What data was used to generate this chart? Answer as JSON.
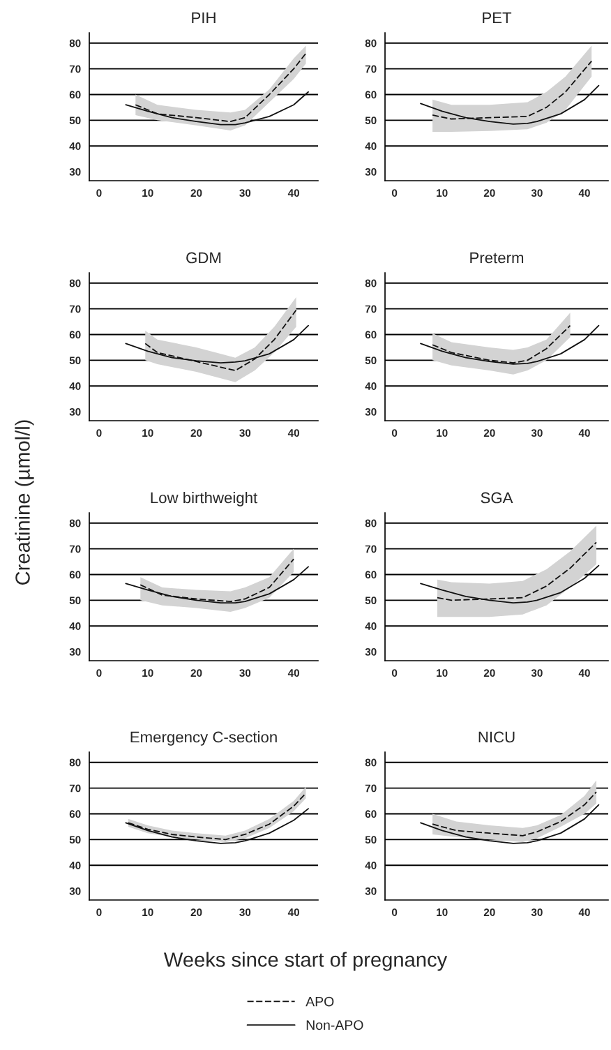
{
  "chart_data": [
    {
      "type": "line",
      "title": "PIH",
      "legend": "bottom",
      "xlim": [
        -2,
        45
      ],
      "ylim": [
        26.5,
        84
      ],
      "xticks": [
        0,
        10,
        20,
        30,
        40
      ],
      "yticks": [
        30,
        40,
        50,
        60,
        70,
        80
      ],
      "ref_lines": [
        {
          "axis": "y",
          "value": 40
        },
        {
          "axis": "y",
          "value": 50
        },
        {
          "axis": "y",
          "value": 60
        },
        {
          "axis": "y",
          "value": 70
        },
        {
          "axis": "y",
          "value": 80
        }
      ],
      "series": [
        {
          "name": "APO",
          "color": "#111111",
          "line_style": "dashed",
          "x": [
            7.5,
            12,
            20,
            27,
            30,
            35,
            40,
            42.5
          ],
          "values": [
            56,
            52.5,
            51,
            49.5,
            51,
            60,
            70,
            76
          ],
          "lower": [
            52,
            50,
            48,
            46,
            48,
            57,
            66,
            72
          ],
          "upper": [
            60,
            56,
            54,
            53,
            54,
            62,
            74,
            79
          ]
        },
        {
          "name": "Non-APO",
          "color": "#111111",
          "line_style": "solid",
          "x": [
            5.5,
            10,
            15,
            20,
            25,
            28,
            30,
            35,
            40,
            43
          ],
          "values": [
            56,
            53.5,
            51,
            49.5,
            48.3,
            48.3,
            49,
            51.5,
            56,
            61
          ]
        }
      ]
    },
    {
      "type": "line",
      "title": "PET",
      "xlim": [
        -2,
        45
      ],
      "ylim": [
        26.5,
        84
      ],
      "xticks": [
        0,
        10,
        20,
        30,
        40
      ],
      "yticks": [
        30,
        40,
        50,
        60,
        70,
        80
      ],
      "ref_lines": [
        {
          "axis": "y",
          "value": 40
        },
        {
          "axis": "y",
          "value": 50
        },
        {
          "axis": "y",
          "value": 60
        },
        {
          "axis": "y",
          "value": 70
        },
        {
          "axis": "y",
          "value": 80
        }
      ],
      "series": [
        {
          "color": "#111111",
          "line_style": "dashed",
          "x": [
            8,
            12,
            20,
            28,
            32,
            36,
            41.5
          ],
          "values": [
            52,
            50.5,
            51,
            51.5,
            55,
            61,
            73
          ],
          "lower": [
            45.5,
            45.5,
            45.8,
            46.5,
            49,
            54,
            67
          ],
          "upper": [
            58,
            56,
            56,
            57,
            61,
            67,
            79
          ]
        },
        {
          "color": "#111111",
          "line_style": "solid",
          "x": [
            5.5,
            10,
            15,
            20,
            25,
            28,
            30,
            35,
            40,
            43
          ],
          "values": [
            56.5,
            53.5,
            51,
            49.5,
            48.5,
            48.8,
            49.5,
            52.5,
            58,
            63.5
          ]
        }
      ]
    },
    {
      "type": "line",
      "title": "GDM",
      "xlim": [
        -2,
        45
      ],
      "ylim": [
        26.5,
        84
      ],
      "xticks": [
        0,
        10,
        20,
        30,
        40
      ],
      "yticks": [
        30,
        40,
        50,
        60,
        70,
        80
      ],
      "ref_lines": [
        {
          "axis": "y",
          "value": 40
        },
        {
          "axis": "y",
          "value": 50
        },
        {
          "axis": "y",
          "value": 60
        },
        {
          "axis": "y",
          "value": 70
        },
        {
          "axis": "y",
          "value": 80
        }
      ],
      "series": [
        {
          "color": "#111111",
          "line_style": "dashed",
          "x": [
            9.5,
            12,
            20,
            28,
            32,
            36,
            40.5
          ],
          "values": [
            56.5,
            53,
            49.5,
            46,
            50.5,
            58,
            69.5
          ],
          "lower": [
            50,
            48.5,
            45.5,
            41.5,
            46,
            53,
            63
          ],
          "upper": [
            61.5,
            58,
            55,
            51,
            55,
            63,
            74.5
          ]
        },
        {
          "color": "#111111",
          "line_style": "solid",
          "x": [
            5.5,
            10,
            15,
            20,
            25,
            28,
            30,
            35,
            40,
            43
          ],
          "values": [
            56.5,
            53.5,
            51,
            49.8,
            49,
            49.3,
            49.8,
            52.5,
            58,
            63.5
          ]
        }
      ]
    },
    {
      "type": "line",
      "title": "Preterm",
      "xlim": [
        -2,
        45
      ],
      "ylim": [
        26.5,
        84
      ],
      "xticks": [
        0,
        10,
        20,
        30,
        40
      ],
      "yticks": [
        30,
        40,
        50,
        60,
        70,
        80
      ],
      "ref_lines": [
        {
          "axis": "y",
          "value": 40
        },
        {
          "axis": "y",
          "value": 50
        },
        {
          "axis": "y",
          "value": 60
        },
        {
          "axis": "y",
          "value": 70
        },
        {
          "axis": "y",
          "value": 80
        }
      ],
      "series": [
        {
          "color": "#111111",
          "line_style": "dashed",
          "x": [
            8,
            12,
            20,
            25,
            28,
            32,
            37
          ],
          "values": [
            56,
            53,
            50,
            49,
            50,
            54.5,
            63.5
          ],
          "lower": [
            50,
            48,
            46,
            44.5,
            46,
            50,
            59
          ],
          "upper": [
            60.5,
            57,
            55,
            54,
            55,
            58,
            68.5
          ]
        },
        {
          "color": "#111111",
          "line_style": "solid",
          "x": [
            5.5,
            10,
            15,
            20,
            25,
            28,
            30,
            35,
            40,
            43
          ],
          "values": [
            56.5,
            53.5,
            51,
            49.5,
            48.5,
            48.8,
            49.5,
            52.5,
            58,
            63.5
          ]
        }
      ]
    },
    {
      "type": "line",
      "title": "Low birthweight",
      "ylabel": "Creatinine (µmol/l)",
      "xlim": [
        -2,
        45
      ],
      "ylim": [
        26.5,
        84
      ],
      "xticks": [
        0,
        10,
        20,
        30,
        40
      ],
      "yticks": [
        30,
        40,
        50,
        60,
        70,
        80
      ],
      "ref_lines": [
        {
          "axis": "y",
          "value": 40
        },
        {
          "axis": "y",
          "value": 50
        },
        {
          "axis": "y",
          "value": 60
        },
        {
          "axis": "y",
          "value": 70
        },
        {
          "axis": "y",
          "value": 80
        }
      ],
      "series": [
        {
          "color": "#111111",
          "line_style": "dashed",
          "x": [
            8.5,
            13,
            20,
            27,
            30,
            35,
            40
          ],
          "values": [
            56,
            52,
            50.5,
            49.5,
            50.5,
            55,
            66
          ],
          "lower": [
            50,
            48,
            47,
            45.5,
            47,
            51,
            61
          ],
          "upper": [
            59,
            55,
            54,
            53.5,
            55,
            59,
            70
          ]
        },
        {
          "color": "#111111",
          "line_style": "solid",
          "x": [
            5.5,
            10,
            15,
            20,
            25,
            28,
            30,
            35,
            40,
            43
          ],
          "values": [
            56.5,
            54,
            51.5,
            50,
            49,
            49,
            49.5,
            52.5,
            58,
            63
          ]
        }
      ]
    },
    {
      "type": "line",
      "title": "SGA",
      "xlim": [
        -2,
        45
      ],
      "ylim": [
        26.5,
        84
      ],
      "xticks": [
        0,
        10,
        20,
        30,
        40
      ],
      "yticks": [
        30,
        40,
        50,
        60,
        70,
        80
      ],
      "ref_lines": [
        {
          "axis": "y",
          "value": 40
        },
        {
          "axis": "y",
          "value": 50
        },
        {
          "axis": "y",
          "value": 60
        },
        {
          "axis": "y",
          "value": 70
        },
        {
          "axis": "y",
          "value": 80
        }
      ],
      "series": [
        {
          "color": "#111111",
          "line_style": "dashed",
          "x": [
            9,
            12,
            20,
            27,
            32,
            37,
            42.5
          ],
          "values": [
            51,
            50,
            50.5,
            51,
            55.5,
            62.5,
            72.5
          ],
          "lower": [
            43.5,
            43.5,
            43.5,
            44.5,
            48,
            55,
            64
          ],
          "upper": [
            58,
            57,
            56.5,
            57.5,
            62,
            69,
            79
          ]
        },
        {
          "color": "#111111",
          "line_style": "solid",
          "x": [
            5.5,
            10,
            15,
            20,
            25,
            28,
            30,
            35,
            40,
            43
          ],
          "values": [
            56.5,
            54,
            51.5,
            50,
            49,
            49.3,
            50,
            53,
            58.5,
            63.5
          ]
        }
      ]
    },
    {
      "type": "line",
      "title": "Emergency C-section",
      "xlabel": "Weeks since start of pregnancy",
      "xlim": [
        -2,
        45
      ],
      "ylim": [
        26.5,
        84
      ],
      "xticks": [
        0,
        10,
        20,
        30,
        40
      ],
      "yticks": [
        30,
        40,
        50,
        60,
        70,
        80
      ],
      "ref_lines": [
        {
          "axis": "y",
          "value": 40
        },
        {
          "axis": "y",
          "value": 50
        },
        {
          "axis": "y",
          "value": 60
        },
        {
          "axis": "y",
          "value": 70
        },
        {
          "axis": "y",
          "value": 80
        }
      ],
      "series": [
        {
          "color": "#111111",
          "line_style": "dashed",
          "x": [
            6,
            10,
            15,
            20,
            26,
            30,
            35,
            40,
            42.5
          ],
          "values": [
            56.5,
            54,
            52,
            51,
            50,
            52,
            56,
            63,
            68
          ],
          "lower": [
            55,
            52.5,
            51,
            50,
            49,
            50.5,
            54.5,
            61,
            66
          ],
          "upper": [
            58,
            55.5,
            53.5,
            52.5,
            51.5,
            53.5,
            58,
            65,
            70.5
          ]
        },
        {
          "color": "#111111",
          "line_style": "solid",
          "x": [
            5.5,
            10,
            15,
            20,
            25,
            28,
            30,
            35,
            40,
            43
          ],
          "values": [
            56.5,
            53.5,
            51,
            49.5,
            48.5,
            48.8,
            49.5,
            52.5,
            57.5,
            62
          ]
        }
      ]
    },
    {
      "type": "line",
      "title": "NICU",
      "xlim": [
        -2,
        45
      ],
      "ylim": [
        26.5,
        84
      ],
      "xticks": [
        0,
        10,
        20,
        30,
        40
      ],
      "yticks": [
        30,
        40,
        50,
        60,
        70,
        80
      ],
      "ref_lines": [
        {
          "axis": "y",
          "value": 40
        },
        {
          "axis": "y",
          "value": 50
        },
        {
          "axis": "y",
          "value": 60
        },
        {
          "axis": "y",
          "value": 70
        },
        {
          "axis": "y",
          "value": 80
        }
      ],
      "series": [
        {
          "color": "#111111",
          "line_style": "dashed",
          "x": [
            8,
            13,
            20,
            27,
            30,
            35,
            40,
            42.5
          ],
          "values": [
            56,
            53.5,
            52.5,
            51.5,
            53,
            57,
            63.5,
            68.5
          ],
          "lower": [
            52,
            51,
            50,
            49,
            50.5,
            55,
            60,
            64
          ],
          "upper": [
            60,
            57,
            55.5,
            54.5,
            55.5,
            59.5,
            67,
            73
          ]
        },
        {
          "color": "#111111",
          "line_style": "solid",
          "x": [
            5.5,
            10,
            15,
            20,
            25,
            28,
            30,
            35,
            40,
            43
          ],
          "values": [
            56.5,
            53.5,
            51,
            49.5,
            48.5,
            48.8,
            49.5,
            52.5,
            58,
            63.5
          ]
        }
      ]
    }
  ]
}
